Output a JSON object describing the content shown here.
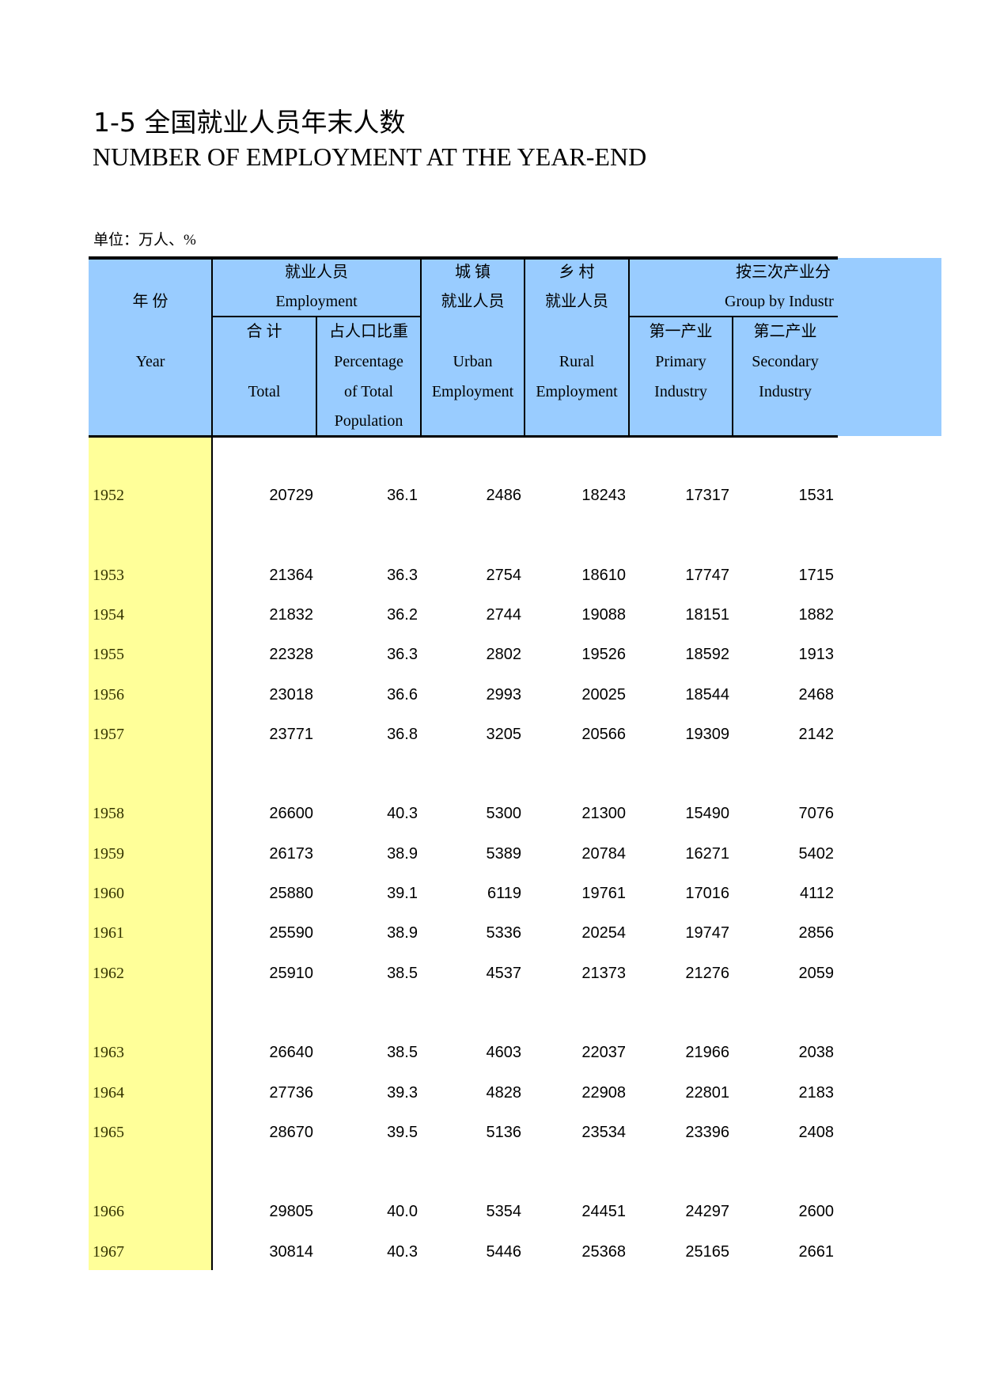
{
  "title_cn": "1-5  全国就业人员年末人数",
  "title_en": "NUMBER OF EMPLOYMENT AT THE YEAR-END",
  "unit": "单位：万人、%",
  "header": {
    "year_cn": "年  份",
    "year_en": "Year",
    "employment_cn": "就业人员",
    "employment_en": "Employment",
    "total_cn": "合    计",
    "total_en": "Total",
    "pct_cn": "占人口比重",
    "pct_en1": "Percentage",
    "pct_en2": "of Total",
    "pct_en3": "Population",
    "urban_cn1": "城        镇",
    "urban_cn2": "就业人员",
    "urban_en1": "Urban",
    "urban_en2": "Employment",
    "rural_cn1": "乡        村",
    "rural_cn2": "就业人员",
    "rural_en1": "Rural",
    "rural_en2": "Employment",
    "industry_cn": "按三次产业分",
    "industry_en": "Group by Industr",
    "primary_cn": "第一产业",
    "primary_en1": "Primary",
    "primary_en2": "Industry",
    "secondary_cn": "第二产业",
    "secondary_en1": "Secondary",
    "secondary_en2": "Industry"
  },
  "colors": {
    "header_bg": "#99ccff",
    "year_bg": "#ffff99"
  },
  "groups": [
    [
      [
        "1952",
        "20729",
        "36.1",
        "2486",
        "18243",
        "17317",
        "1531"
      ]
    ],
    [
      [
        "1953",
        "21364",
        "36.3",
        "2754",
        "18610",
        "17747",
        "1715"
      ],
      [
        "1954",
        "21832",
        "36.2",
        "2744",
        "19088",
        "18151",
        "1882"
      ],
      [
        "1955",
        "22328",
        "36.3",
        "2802",
        "19526",
        "18592",
        "1913"
      ],
      [
        "1956",
        "23018",
        "36.6",
        "2993",
        "20025",
        "18544",
        "2468"
      ],
      [
        "1957",
        "23771",
        "36.8",
        "3205",
        "20566",
        "19309",
        "2142"
      ]
    ],
    [
      [
        "1958",
        "26600",
        "40.3",
        "5300",
        "21300",
        "15490",
        "7076"
      ],
      [
        "1959",
        "26173",
        "38.9",
        "5389",
        "20784",
        "16271",
        "5402"
      ],
      [
        "1960",
        "25880",
        "39.1",
        "6119",
        "19761",
        "17016",
        "4112"
      ],
      [
        "1961",
        "25590",
        "38.9",
        "5336",
        "20254",
        "19747",
        "2856"
      ],
      [
        "1962",
        "25910",
        "38.5",
        "4537",
        "21373",
        "21276",
        "2059"
      ]
    ],
    [
      [
        "1963",
        "26640",
        "38.5",
        "4603",
        "22037",
        "21966",
        "2038"
      ],
      [
        "1964",
        "27736",
        "39.3",
        "4828",
        "22908",
        "22801",
        "2183"
      ],
      [
        "1965",
        "28670",
        "39.5",
        "5136",
        "23534",
        "23396",
        "2408"
      ]
    ],
    [
      [
        "1966",
        "29805",
        "40.0",
        "5354",
        "24451",
        "24297",
        "2600"
      ],
      [
        "1967",
        "30814",
        "40.3",
        "5446",
        "25368",
        "25165",
        "2661"
      ]
    ]
  ]
}
